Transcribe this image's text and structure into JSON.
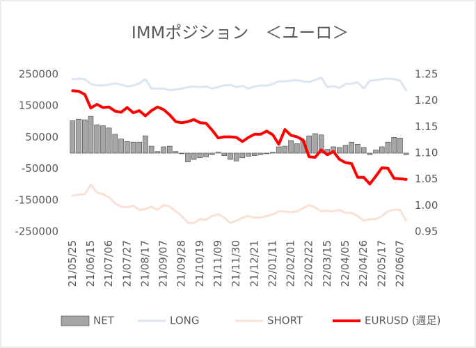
{
  "chart_data": {
    "type": "combo",
    "title": "IMMポジション　＜ユーロ＞",
    "categories": [
      "21/05/25",
      null,
      null,
      "21/06/15",
      null,
      null,
      "21/07/06",
      null,
      null,
      "21/07/27",
      null,
      null,
      "21/08/17",
      null,
      null,
      "21/09/07",
      null,
      null,
      "21/09/28",
      null,
      null,
      "21/10/19",
      null,
      null,
      "21/11/09",
      null,
      null,
      "21/11/30",
      null,
      null,
      "21/12/21",
      null,
      null,
      "22/01/11",
      null,
      null,
      "22/02/01",
      null,
      null,
      "22/02/22",
      null,
      null,
      "22/03/15",
      null,
      null,
      "22/04/05",
      null,
      null,
      "22/04/26",
      null,
      null,
      "22/05/17",
      null,
      null,
      "22/06/07",
      null
    ],
    "ylim": [
      -250000,
      250000
    ],
    "yticks": [
      250000,
      150000,
      50000,
      -50000,
      -150000,
      -250000
    ],
    "y2lim": [
      0.95,
      1.25
    ],
    "y2ticks": [
      1.25,
      {
        "value": 1.2,
        "label": "1.20"
      },
      1.15,
      {
        "value": 1.1,
        "label": "1.10"
      },
      1.05,
      {
        "value": 1.0,
        "label": "1.00"
      },
      0.95
    ],
    "series": [
      {
        "name": "NET",
        "type": "bar",
        "color": "#a6a6a6",
        "values": [
          103000,
          108000,
          106000,
          117000,
          90000,
          87000,
          80000,
          60000,
          45000,
          37000,
          35000,
          35000,
          55000,
          22000,
          5000,
          20000,
          22000,
          5000,
          -2000,
          -28000,
          -20000,
          -15000,
          -12000,
          -5000,
          3000,
          -8000,
          -20000,
          -25000,
          -15000,
          -10000,
          -8000,
          -5000,
          -2000,
          3000,
          20000,
          22000,
          40000,
          30000,
          40000,
          55000,
          62000,
          58000,
          12000,
          20000,
          18000,
          25000,
          35000,
          28000,
          18000,
          -5000,
          10000,
          20000,
          35000,
          50000,
          48000,
          -5000
        ]
      },
      {
        "name": "LONG",
        "type": "line",
        "color": "#dce6f2",
        "values": [
          235000,
          237000,
          235000,
          220000,
          215000,
          215000,
          218000,
          222000,
          218000,
          212000,
          215000,
          222000,
          235000,
          205000,
          205000,
          205000,
          200000,
          202000,
          205000,
          210000,
          212000,
          210000,
          212000,
          205000,
          210000,
          215000,
          217000,
          210000,
          214000,
          205000,
          212000,
          215000,
          214000,
          220000,
          228000,
          228000,
          230000,
          232000,
          228000,
          226000,
          232000,
          240000,
          210000,
          213000,
          207000,
          220000,
          221000,
          225000,
          205000,
          230000,
          232000,
          235000,
          237000,
          235000,
          230000,
          200000
        ]
      },
      {
        "name": "SHORT",
        "type": "line",
        "color": "#fbe0d4",
        "values": [
          -135000,
          -132000,
          -130000,
          -100000,
          -125000,
          -130000,
          -140000,
          -160000,
          -170000,
          -172000,
          -168000,
          -180000,
          -178000,
          -170000,
          -180000,
          -165000,
          -170000,
          -185000,
          -200000,
          -222000,
          -222000,
          -210000,
          -212000,
          -200000,
          -195000,
          -205000,
          -222000,
          -215000,
          -205000,
          -200000,
          -205000,
          -205000,
          -200000,
          -195000,
          -185000,
          -185000,
          -188000,
          -185000,
          -175000,
          -165000,
          -173000,
          -185000,
          -183000,
          -185000,
          -180000,
          -190000,
          -190000,
          -200000,
          -215000,
          -210000,
          -210000,
          -200000,
          -185000,
          -180000,
          -180000,
          -215000
        ]
      },
      {
        "name": "EURUSD (週足)",
        "type": "line",
        "axis": "y2",
        "color": "#ff0000",
        "values": [
          1.219,
          1.218,
          1.212,
          1.186,
          1.193,
          1.187,
          1.188,
          1.18,
          1.178,
          1.187,
          1.177,
          1.181,
          1.171,
          1.181,
          1.188,
          1.183,
          1.173,
          1.16,
          1.158,
          1.16,
          1.164,
          1.158,
          1.157,
          1.144,
          1.129,
          1.131,
          1.131,
          1.13,
          1.122,
          1.13,
          1.136,
          1.136,
          1.142,
          1.135,
          1.117,
          1.145,
          1.134,
          1.131,
          1.125,
          1.093,
          1.092,
          1.106,
          1.097,
          1.103,
          1.088,
          1.082,
          1.08,
          1.054,
          1.054,
          1.041,
          1.056,
          1.072,
          1.071,
          1.052,
          1.051,
          1.05
        ]
      }
    ]
  }
}
